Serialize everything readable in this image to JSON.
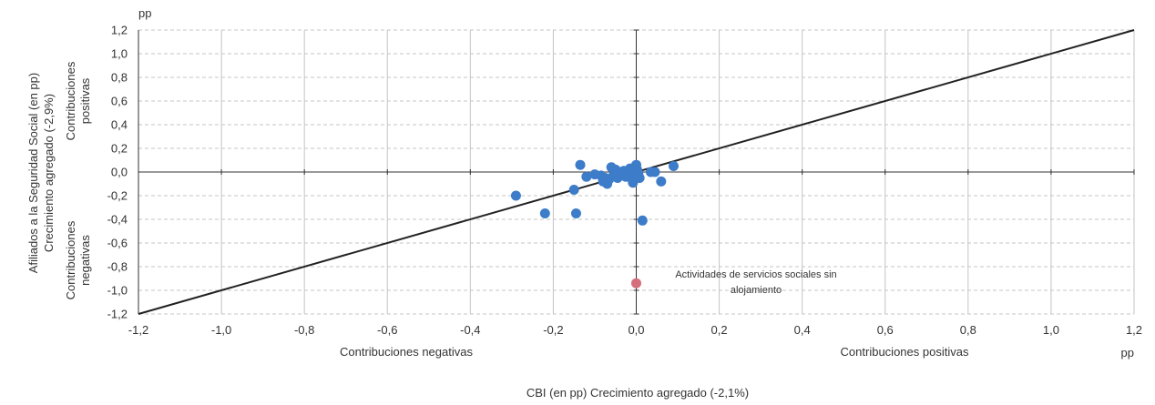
{
  "chart_data": {
    "type": "scatter",
    "title": "",
    "xlabel": "CBI (en pp) Crecimiento agregado (-2,1%)",
    "ylabel": [
      "Afiliados a la Seguridad Social (en pp)",
      "Crecimiento agregado (-2,9%)"
    ],
    "x_unit": "pp",
    "y_unit": "pp",
    "xlim": [
      -1.2,
      1.2
    ],
    "ylim": [
      -1.2,
      1.2
    ],
    "xticks": [
      "-1,2",
      "-1,0",
      "-0,8",
      "-0,6",
      "-0,4",
      "-0,2",
      "0,0",
      "0,2",
      "0,4",
      "0,6",
      "0,8",
      "1,0",
      "1,2"
    ],
    "yticks": [
      "1,2",
      "1,0",
      "0,8",
      "0,6",
      "0,4",
      "0,2",
      "0,0",
      "-0,2",
      "-0,4",
      "-0,6",
      "-0,8",
      "-1,0",
      "-1,2"
    ],
    "grid": true,
    "quadrant_labels": {
      "x_negative": "Contribuciones negativas",
      "x_positive": "Contribuciones positivas",
      "y_positive": [
        "Contribuciones",
        "positivas"
      ],
      "y_negative": [
        "Contribuciones",
        "negativas"
      ]
    },
    "reference_line": {
      "from": [
        -1.2,
        -1.2
      ],
      "to": [
        1.2,
        1.2
      ],
      "color": "#222222"
    },
    "point_color": "#3d7cc9",
    "highlight_color": "#d4707d",
    "points": [
      [
        -0.29,
        -0.2
      ],
      [
        -0.22,
        -0.35
      ],
      [
        -0.15,
        -0.15
      ],
      [
        -0.145,
        -0.35
      ],
      [
        -0.135,
        0.06
      ],
      [
        -0.12,
        -0.04
      ],
      [
        -0.1,
        -0.02
      ],
      [
        -0.085,
        -0.03
      ],
      [
        -0.08,
        -0.08
      ],
      [
        -0.075,
        -0.05
      ],
      [
        -0.07,
        -0.1
      ],
      [
        -0.065,
        -0.06
      ],
      [
        -0.06,
        0.04
      ],
      [
        -0.055,
        -0.03
      ],
      [
        -0.05,
        0.02
      ],
      [
        -0.045,
        -0.05
      ],
      [
        -0.04,
        0.0
      ],
      [
        -0.035,
        -0.02
      ],
      [
        -0.03,
        0.01
      ],
      [
        -0.025,
        -0.04
      ],
      [
        -0.02,
        -0.01
      ],
      [
        -0.015,
        0.03
      ],
      [
        -0.01,
        -0.06
      ],
      [
        -0.008,
        -0.09
      ],
      [
        -0.005,
        0.0
      ],
      [
        0.0,
        -0.03
      ],
      [
        0.0,
        0.06
      ],
      [
        0.002,
        0.02
      ],
      [
        0.005,
        -0.01
      ],
      [
        0.008,
        -0.05
      ],
      [
        0.015,
        -0.41
      ],
      [
        0.035,
        0.0
      ],
      [
        0.045,
        0.0
      ],
      [
        0.06,
        -0.08
      ],
      [
        0.09,
        0.05
      ]
    ],
    "highlight": {
      "x": 0.0,
      "y": -0.94,
      "label": [
        "Actividades de servicios sociales sin",
        "alojamiento"
      ]
    }
  }
}
